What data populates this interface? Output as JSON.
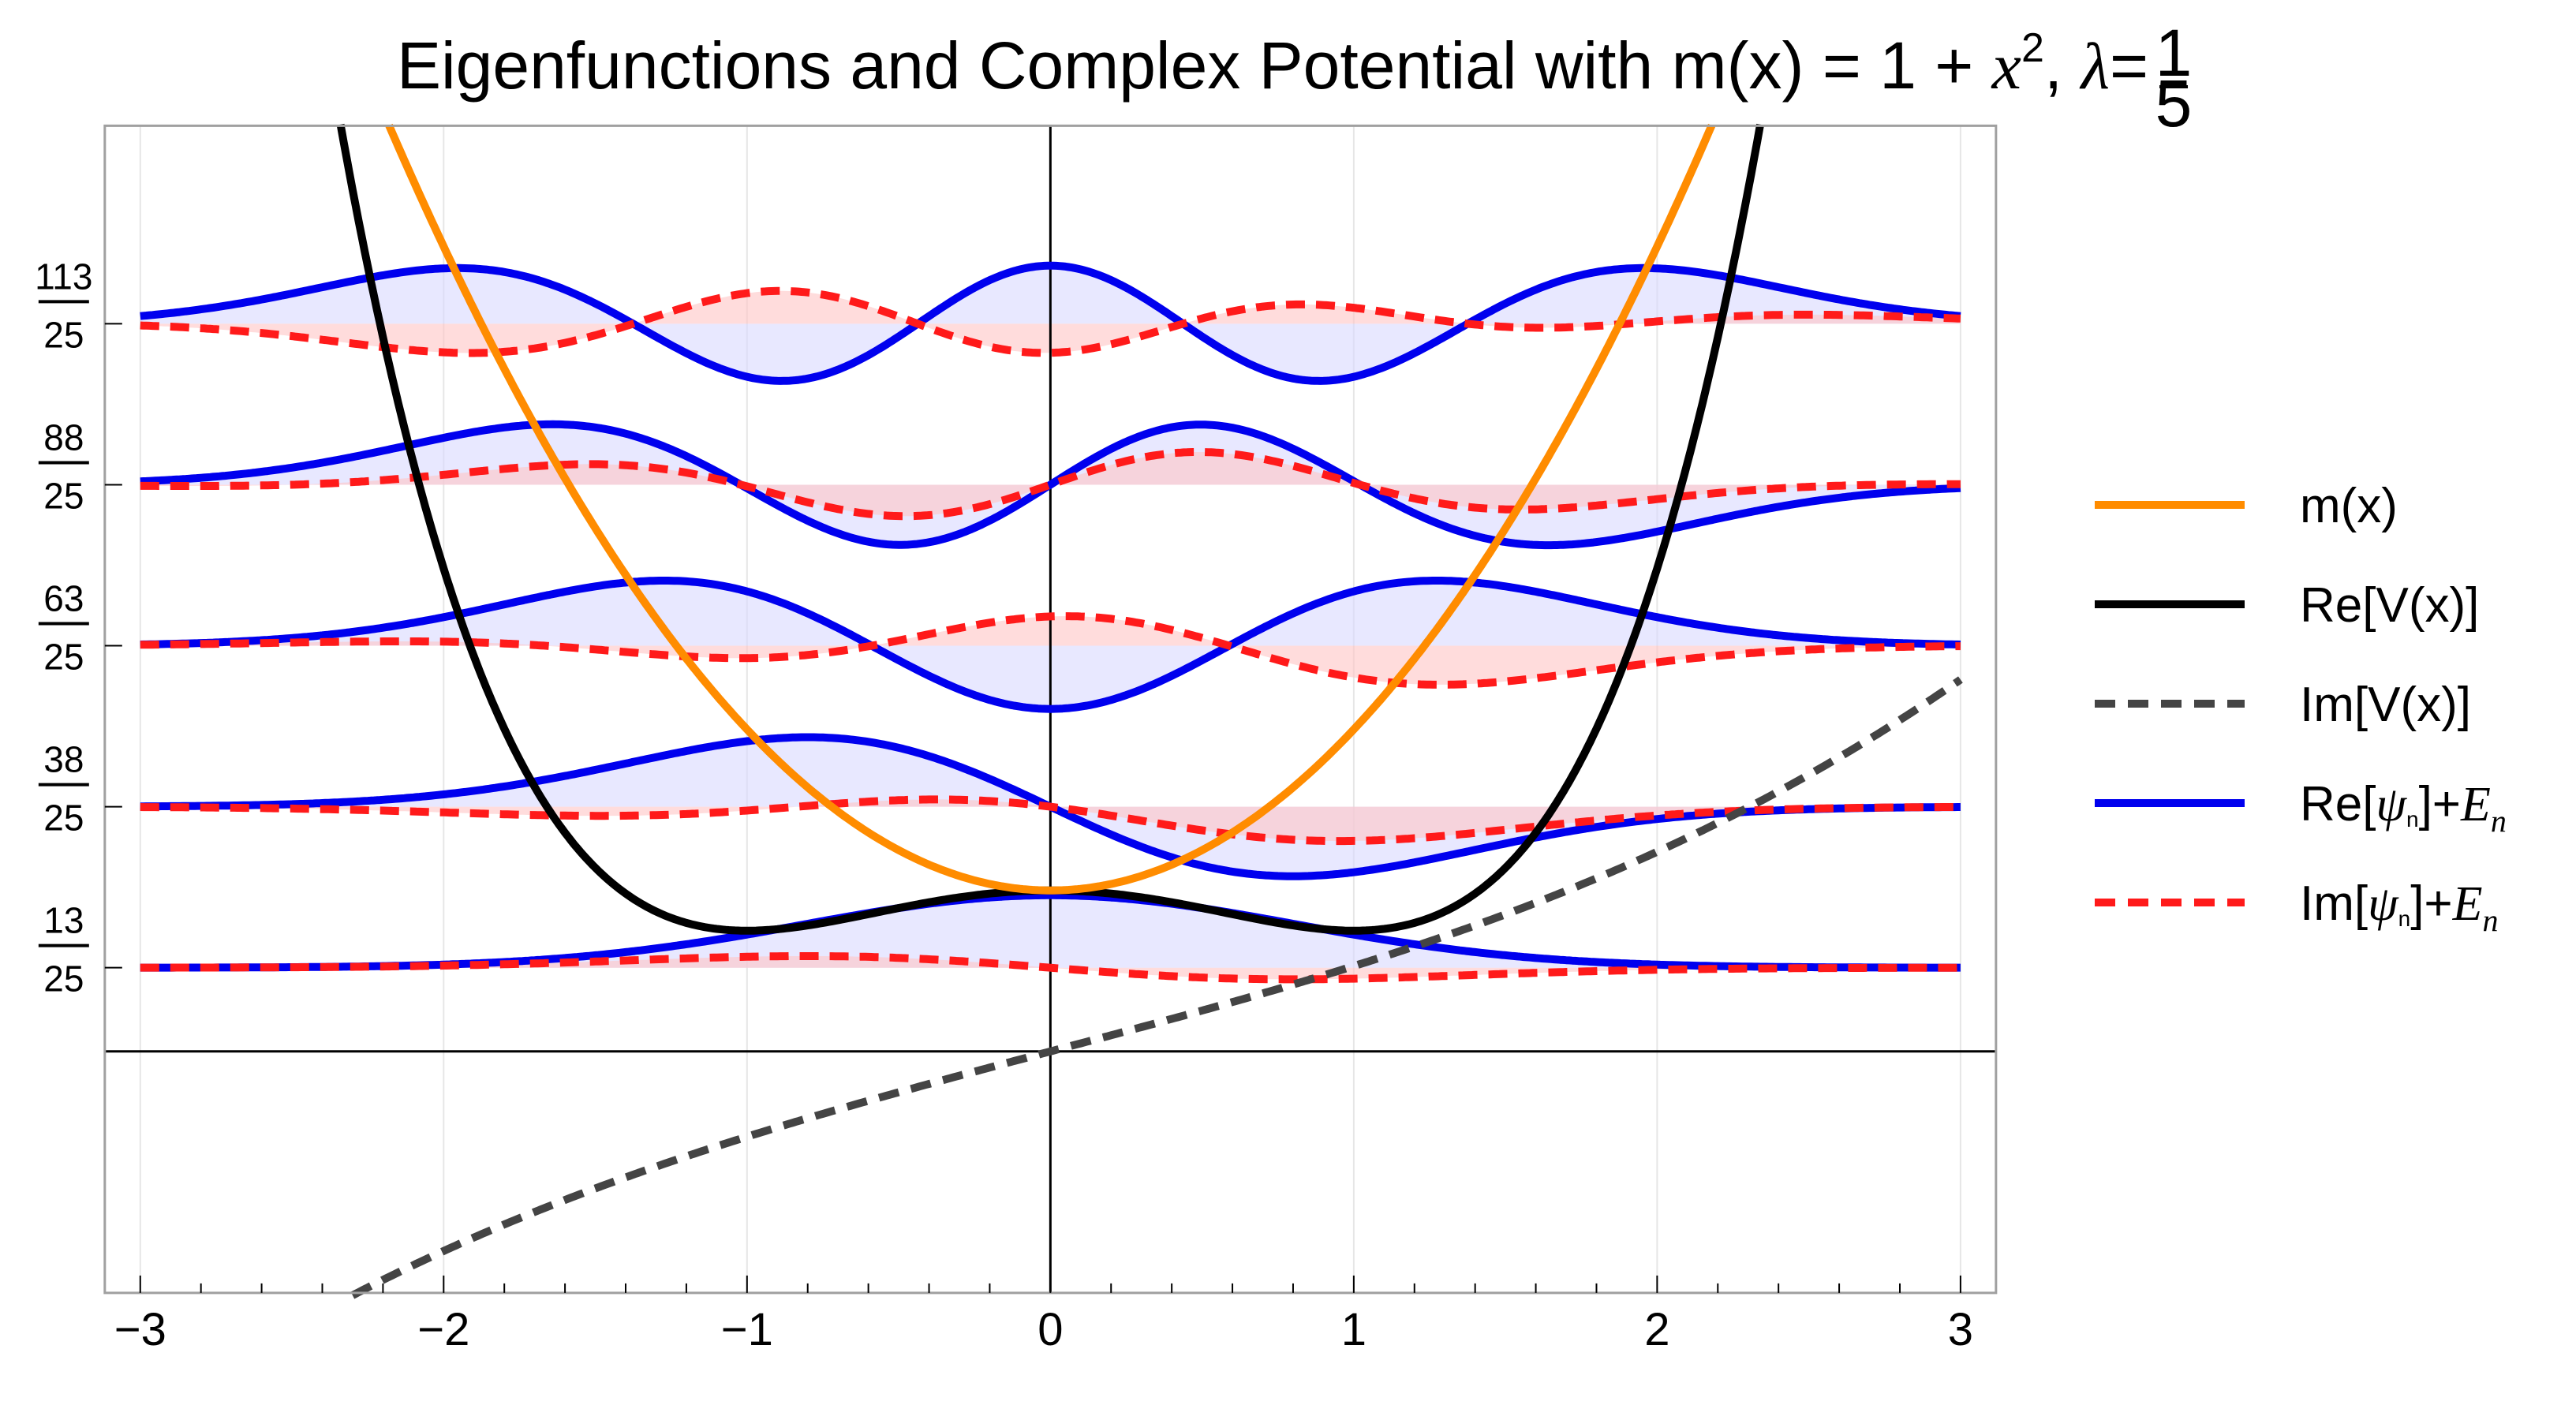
{
  "chart_data": {
    "type": "line",
    "title": {
      "main": "Eigenfunctions and Complex Potential with m(x) = 1 + ",
      "x_var": "x",
      "sup": "2",
      "sep": ", ",
      "lambda": "λ",
      "eq": "=",
      "lambda_num": "1",
      "lambda_den": "5"
    },
    "xlim": [
      -3,
      3
    ],
    "ylim": [
      -1.5,
      5.75
    ],
    "xticks": [
      {
        "value": -3,
        "label": "−3"
      },
      {
        "value": -2,
        "label": "−2"
      },
      {
        "value": -1,
        "label": "−1"
      },
      {
        "value": 0,
        "label": "0"
      },
      {
        "value": 1,
        "label": "1"
      },
      {
        "value": 2,
        "label": "2"
      },
      {
        "value": 3,
        "label": "3"
      }
    ],
    "energy_levels": [
      {
        "value": 0.52,
        "num": "13",
        "den": "25"
      },
      {
        "value": 1.52,
        "num": "38",
        "den": "25"
      },
      {
        "value": 2.52,
        "num": "63",
        "den": "25"
      },
      {
        "value": 3.52,
        "num": "88",
        "den": "25"
      },
      {
        "value": 4.52,
        "num": "113",
        "den": "25"
      }
    ],
    "lambda": 0.2,
    "wavefunction_amplitude": 0.45,
    "series": [
      {
        "name": "m(x)",
        "color": "#ff8c00",
        "dash": "solid",
        "formula": "1 + x^2"
      },
      {
        "name": "Re[V(x)]",
        "color": "#000000",
        "dash": "solid",
        "formula": "0.25*x^4 - 0.5*x^2 + 1 (approx.)"
      },
      {
        "name": "Im[V(x)]",
        "color": "#444444",
        "dash": "dashed",
        "formula": "0.5*x + 0.03*x^3 (approx.)"
      },
      {
        "name": "Re[ψn]+En",
        "color": "#0000ee",
        "dash": "solid"
      },
      {
        "name": "Im[ψn]+En",
        "color": "#ff1a1a",
        "dash": "dashed"
      }
    ],
    "legend_position": "right",
    "legend": [
      {
        "key": "m",
        "label": "m(x)",
        "color": "#ff8c00",
        "dash": "solid"
      },
      {
        "key": "rev",
        "label": "Re[V(x)]",
        "color": "#000000",
        "dash": "solid"
      },
      {
        "key": "imv",
        "label": "Im[V(x)]",
        "color": "#444444",
        "dash": "dashed"
      },
      {
        "key": "repsi",
        "label_prefix": "Re[",
        "psi": "ψ",
        "sub": "n",
        "label_mid": "]+",
        "E": "E",
        "Esub": "n",
        "color": "#0000ee",
        "dash": "solid"
      },
      {
        "key": "impsi",
        "label_prefix": "Im[",
        "psi": "ψ",
        "sub": "n",
        "label_mid": "]+",
        "E": "E",
        "Esub": "n",
        "color": "#ff1a1a",
        "dash": "dashed"
      }
    ],
    "colors": {
      "re_fill": "#d8d8ff",
      "im_fill": "#ffc4c4",
      "grid": "#e6e6e6",
      "frame": "#a0a0a0"
    }
  }
}
